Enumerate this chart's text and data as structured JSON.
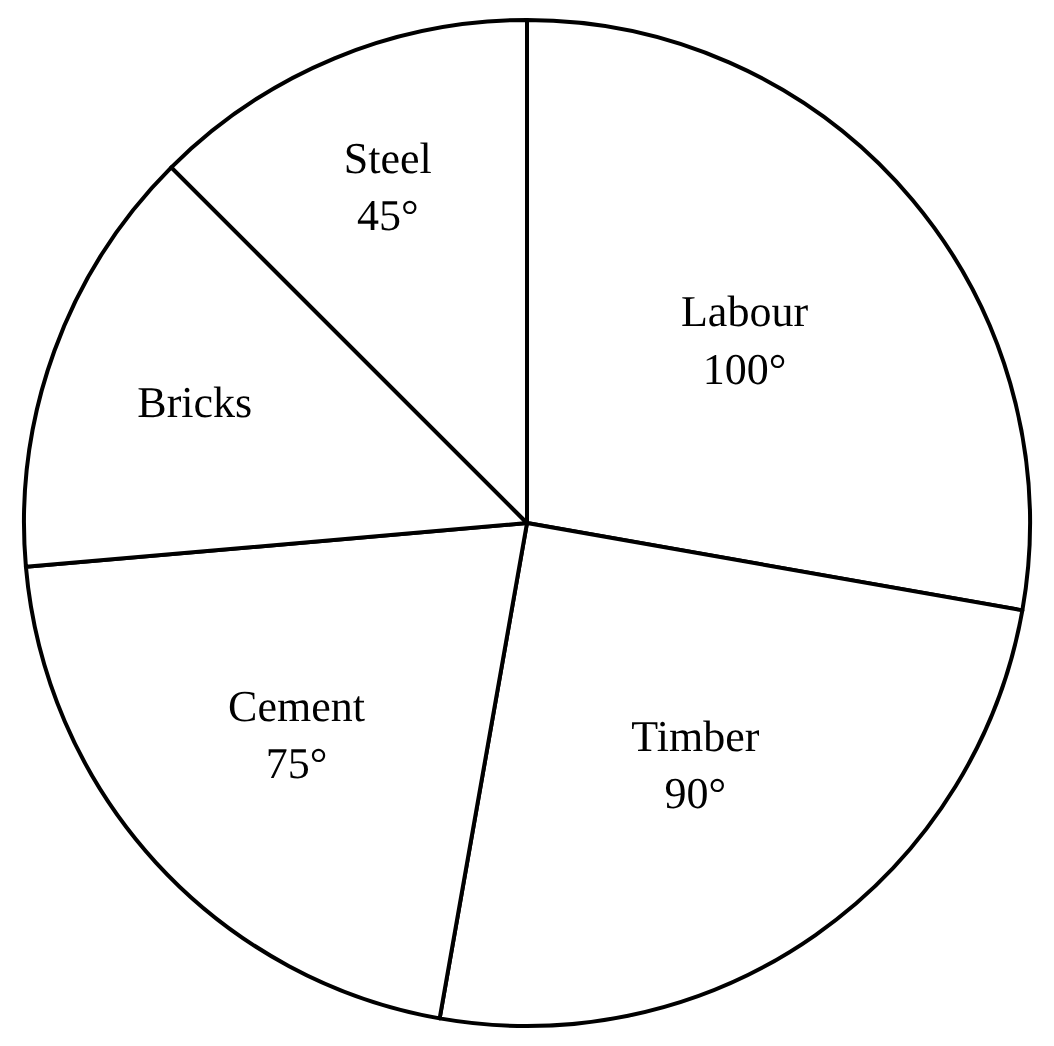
{
  "chart_data": {
    "type": "pie",
    "categories": [
      "Labour",
      "Timber",
      "Cement",
      "Bricks",
      "Steel"
    ],
    "values": [
      100,
      90,
      75,
      50,
      45
    ],
    "value_labels": [
      "100°",
      "90°",
      "75°",
      null,
      "45°"
    ],
    "colors": [
      "#ffffff",
      "#ffffff",
      "#ffffff",
      "#ffffff",
      "#ffffff"
    ],
    "legend": false
  }
}
